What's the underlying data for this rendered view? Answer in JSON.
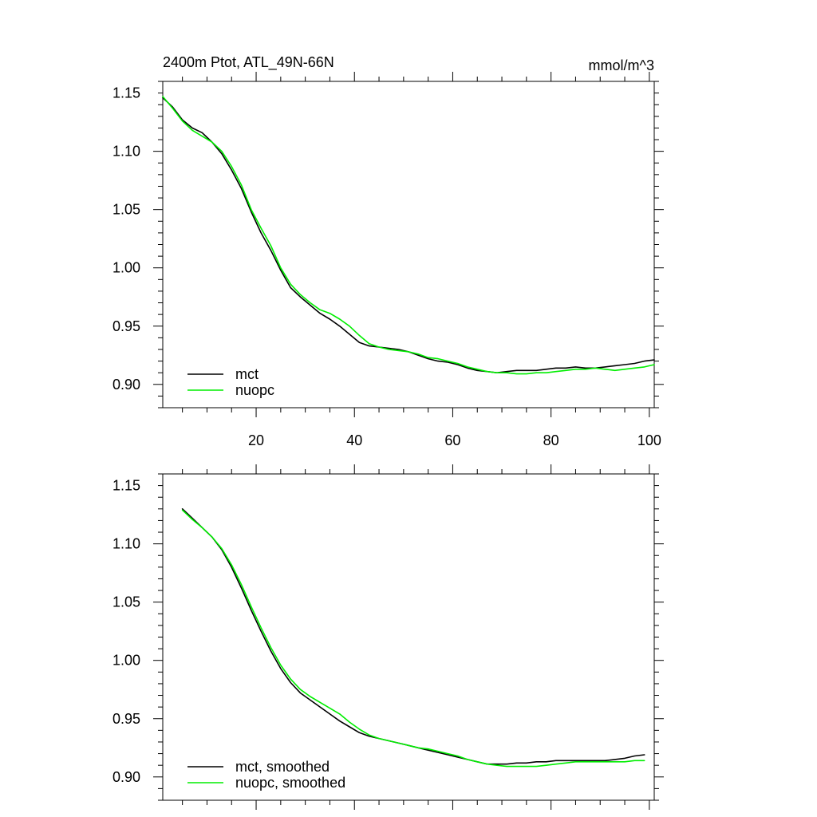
{
  "chart_data": [
    {
      "type": "line",
      "title": "2400m Ptot, ATL_49N-66N",
      "units": "mmol/m^3",
      "xlim": [
        1,
        101
      ],
      "ylim": [
        0.88,
        1.16
      ],
      "xticks": [
        20,
        40,
        60,
        80,
        100
      ],
      "yticks": [
        0.9,
        0.95,
        1.0,
        1.05,
        1.1,
        1.15
      ],
      "ytick_labels": [
        "0.90",
        "0.95",
        "1.00",
        "1.05",
        "1.10",
        "1.15"
      ],
      "show_xtick_labels": true,
      "legend_position": "bottom-left",
      "series": [
        {
          "name": "mct",
          "color": "#000000",
          "points": [
            [
              1,
              1.146
            ],
            [
              3,
              1.138
            ],
            [
              5,
              1.127
            ],
            [
              7,
              1.12
            ],
            [
              9,
              1.116
            ],
            [
              11,
              1.108
            ],
            [
              13,
              1.098
            ],
            [
              15,
              1.084
            ],
            [
              17,
              1.068
            ],
            [
              19,
              1.048
            ],
            [
              21,
              1.03
            ],
            [
              23,
              1.015
            ],
            [
              25,
              0.998
            ],
            [
              27,
              0.983
            ],
            [
              29,
              0.975
            ],
            [
              31,
              0.968
            ],
            [
              33,
              0.961
            ],
            [
              35,
              0.956
            ],
            [
              37,
              0.95
            ],
            [
              39,
              0.943
            ],
            [
              41,
              0.936
            ],
            [
              43,
              0.933
            ],
            [
              45,
              0.932
            ],
            [
              47,
              0.931
            ],
            [
              49,
              0.93
            ],
            [
              51,
              0.928
            ],
            [
              53,
              0.925
            ],
            [
              55,
              0.922
            ],
            [
              57,
              0.92
            ],
            [
              59,
              0.919
            ],
            [
              61,
              0.917
            ],
            [
              63,
              0.914
            ],
            [
              65,
              0.912
            ],
            [
              67,
              0.911
            ],
            [
              69,
              0.91
            ],
            [
              71,
              0.911
            ],
            [
              73,
              0.912
            ],
            [
              75,
              0.912
            ],
            [
              77,
              0.912
            ],
            [
              79,
              0.913
            ],
            [
              81,
              0.914
            ],
            [
              83,
              0.914
            ],
            [
              85,
              0.915
            ],
            [
              87,
              0.914
            ],
            [
              89,
              0.914
            ],
            [
              91,
              0.915
            ],
            [
              93,
              0.916
            ],
            [
              95,
              0.917
            ],
            [
              97,
              0.918
            ],
            [
              99,
              0.92
            ],
            [
              101,
              0.921
            ]
          ]
        },
        {
          "name": "nuopc",
          "color": "#00ee00",
          "points": [
            [
              1,
              1.147
            ],
            [
              3,
              1.137
            ],
            [
              5,
              1.126
            ],
            [
              7,
              1.118
            ],
            [
              9,
              1.113
            ],
            [
              11,
              1.108
            ],
            [
              13,
              1.1
            ],
            [
              15,
              1.087
            ],
            [
              17,
              1.071
            ],
            [
              19,
              1.05
            ],
            [
              21,
              1.034
            ],
            [
              23,
              1.019
            ],
            [
              25,
              1.0
            ],
            [
              27,
              0.986
            ],
            [
              29,
              0.977
            ],
            [
              31,
              0.97
            ],
            [
              33,
              0.964
            ],
            [
              35,
              0.961
            ],
            [
              37,
              0.956
            ],
            [
              39,
              0.95
            ],
            [
              41,
              0.942
            ],
            [
              43,
              0.935
            ],
            [
              45,
              0.932
            ],
            [
              47,
              0.93
            ],
            [
              49,
              0.929
            ],
            [
              51,
              0.928
            ],
            [
              53,
              0.926
            ],
            [
              55,
              0.923
            ],
            [
              57,
              0.922
            ],
            [
              59,
              0.92
            ],
            [
              61,
              0.918
            ],
            [
              63,
              0.915
            ],
            [
              65,
              0.913
            ],
            [
              67,
              0.911
            ],
            [
              69,
              0.91
            ],
            [
              71,
              0.91
            ],
            [
              73,
              0.909
            ],
            [
              75,
              0.909
            ],
            [
              77,
              0.91
            ],
            [
              79,
              0.91
            ],
            [
              81,
              0.911
            ],
            [
              83,
              0.912
            ],
            [
              85,
              0.913
            ],
            [
              87,
              0.913
            ],
            [
              89,
              0.914
            ],
            [
              91,
              0.913
            ],
            [
              93,
              0.912
            ],
            [
              95,
              0.913
            ],
            [
              97,
              0.914
            ],
            [
              99,
              0.915
            ],
            [
              101,
              0.917
            ]
          ]
        }
      ]
    },
    {
      "type": "line",
      "title": "",
      "units": "",
      "xlim": [
        1,
        101
      ],
      "ylim": [
        0.88,
        1.16
      ],
      "xticks": [
        20,
        40,
        60,
        80,
        100
      ],
      "yticks": [
        0.9,
        0.95,
        1.0,
        1.05,
        1.1,
        1.15
      ],
      "ytick_labels": [
        "0.90",
        "0.95",
        "1.00",
        "1.05",
        "1.10",
        "1.15"
      ],
      "show_xtick_labels": false,
      "legend_position": "bottom-left",
      "series": [
        {
          "name": "mct, smoothed",
          "color": "#000000",
          "points": [
            [
              5,
              1.13
            ],
            [
              7,
              1.122
            ],
            [
              9,
              1.114
            ],
            [
              11,
              1.106
            ],
            [
              13,
              1.095
            ],
            [
              15,
              1.08
            ],
            [
              17,
              1.062
            ],
            [
              19,
              1.043
            ],
            [
              21,
              1.025
            ],
            [
              23,
              1.008
            ],
            [
              25,
              0.993
            ],
            [
              27,
              0.981
            ],
            [
              29,
              0.972
            ],
            [
              31,
              0.966
            ],
            [
              33,
              0.96
            ],
            [
              35,
              0.954
            ],
            [
              37,
              0.948
            ],
            [
              39,
              0.943
            ],
            [
              41,
              0.938
            ],
            [
              43,
              0.935
            ],
            [
              45,
              0.933
            ],
            [
              47,
              0.931
            ],
            [
              49,
              0.929
            ],
            [
              51,
              0.927
            ],
            [
              53,
              0.925
            ],
            [
              55,
              0.923
            ],
            [
              57,
              0.921
            ],
            [
              59,
              0.919
            ],
            [
              61,
              0.917
            ],
            [
              63,
              0.915
            ],
            [
              65,
              0.913
            ],
            [
              67,
              0.911
            ],
            [
              69,
              0.911
            ],
            [
              71,
              0.911
            ],
            [
              73,
              0.912
            ],
            [
              75,
              0.912
            ],
            [
              77,
              0.913
            ],
            [
              79,
              0.913
            ],
            [
              81,
              0.914
            ],
            [
              83,
              0.914
            ],
            [
              85,
              0.914
            ],
            [
              87,
              0.914
            ],
            [
              89,
              0.914
            ],
            [
              91,
              0.914
            ],
            [
              93,
              0.915
            ],
            [
              95,
              0.916
            ],
            [
              97,
              0.918
            ],
            [
              99,
              0.919
            ]
          ]
        },
        {
          "name": "nuopc, smoothed",
          "color": "#00ee00",
          "points": [
            [
              5,
              1.129
            ],
            [
              7,
              1.121
            ],
            [
              9,
              1.114
            ],
            [
              11,
              1.106
            ],
            [
              13,
              1.096
            ],
            [
              15,
              1.082
            ],
            [
              17,
              1.065
            ],
            [
              19,
              1.046
            ],
            [
              21,
              1.028
            ],
            [
              23,
              1.011
            ],
            [
              25,
              0.996
            ],
            [
              27,
              0.984
            ],
            [
              29,
              0.975
            ],
            [
              31,
              0.969
            ],
            [
              33,
              0.964
            ],
            [
              35,
              0.959
            ],
            [
              37,
              0.954
            ],
            [
              39,
              0.947
            ],
            [
              41,
              0.941
            ],
            [
              43,
              0.936
            ],
            [
              45,
              0.933
            ],
            [
              47,
              0.931
            ],
            [
              49,
              0.929
            ],
            [
              51,
              0.927
            ],
            [
              53,
              0.925
            ],
            [
              55,
              0.924
            ],
            [
              57,
              0.922
            ],
            [
              59,
              0.92
            ],
            [
              61,
              0.918
            ],
            [
              63,
              0.915
            ],
            [
              65,
              0.913
            ],
            [
              67,
              0.911
            ],
            [
              69,
              0.91
            ],
            [
              71,
              0.909
            ],
            [
              73,
              0.909
            ],
            [
              75,
              0.909
            ],
            [
              77,
              0.909
            ],
            [
              79,
              0.91
            ],
            [
              81,
              0.911
            ],
            [
              83,
              0.912
            ],
            [
              85,
              0.913
            ],
            [
              87,
              0.913
            ],
            [
              89,
              0.913
            ],
            [
              91,
              0.913
            ],
            [
              93,
              0.913
            ],
            [
              95,
              0.913
            ],
            [
              97,
              0.914
            ],
            [
              99,
              0.914
            ]
          ]
        }
      ]
    }
  ]
}
